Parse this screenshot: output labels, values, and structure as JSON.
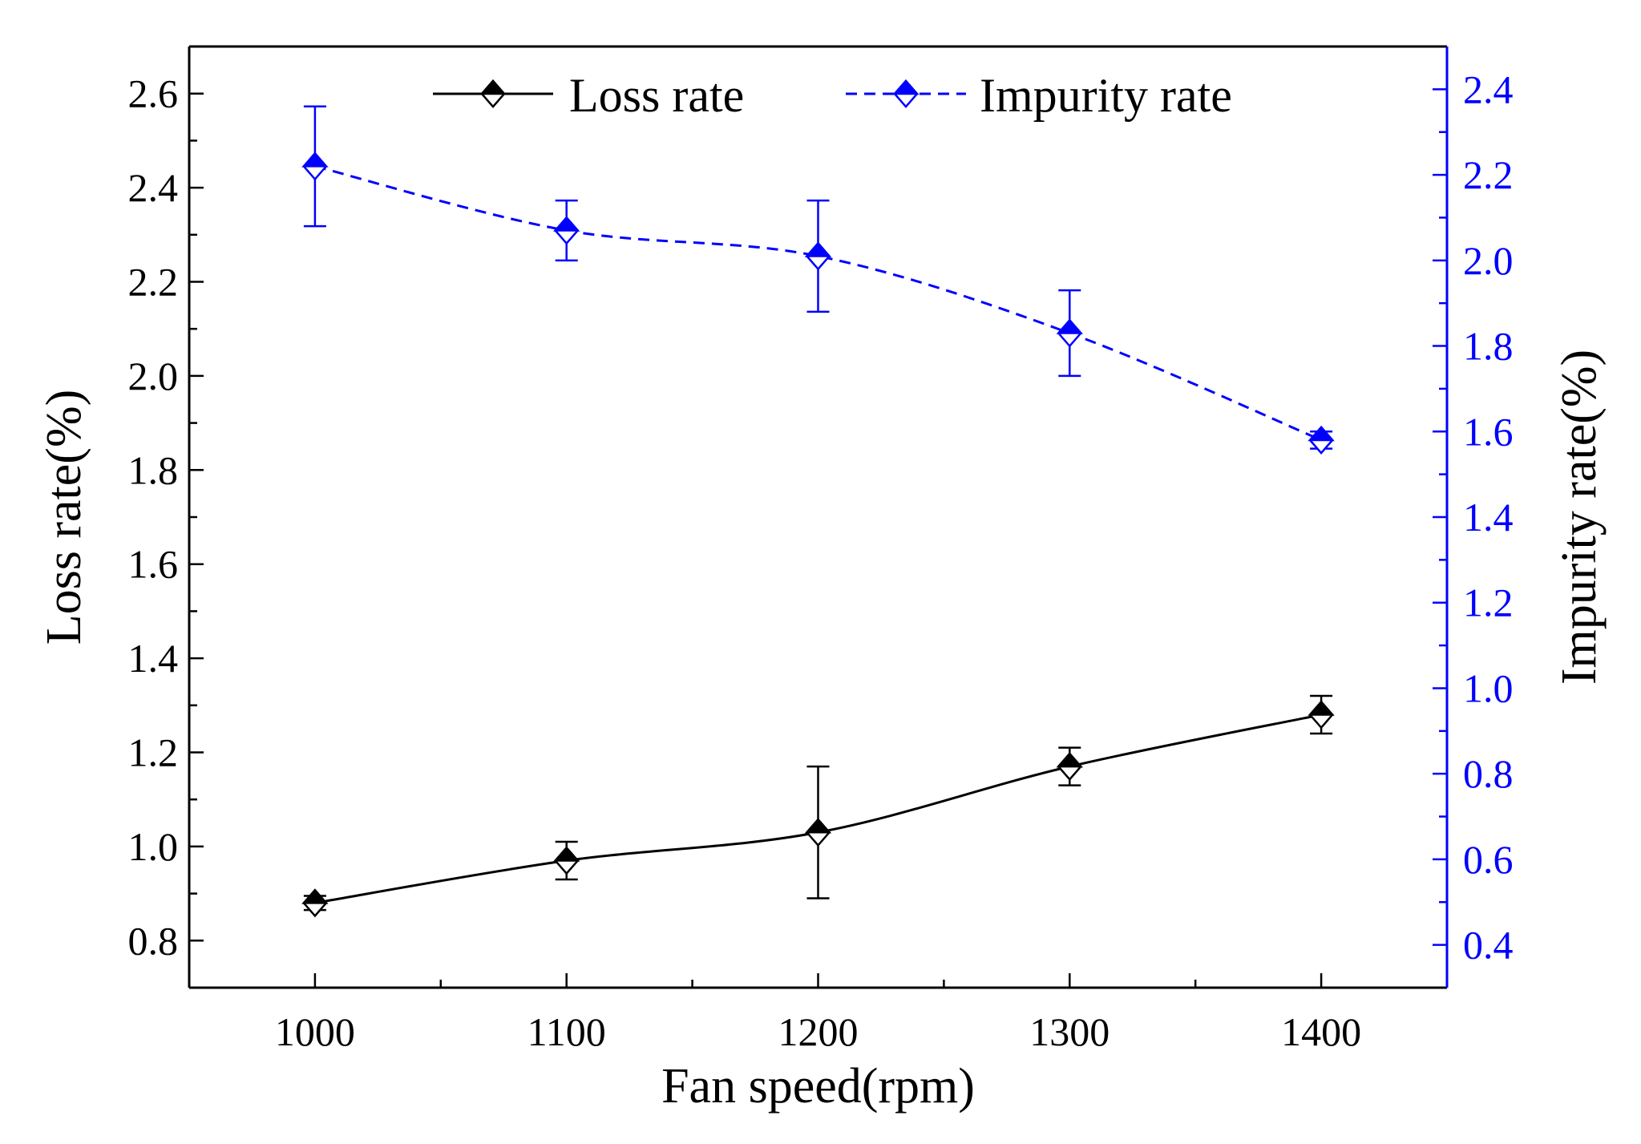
{
  "chart_data": {
    "type": "line",
    "title": "",
    "xlabel": "Fan speed(rpm)",
    "ylabel": "Loss rate(%)",
    "y2label": "Impurity rate(%)",
    "x": [
      1000,
      1100,
      1200,
      1300,
      1400
    ],
    "xlim": [
      950,
      1450
    ],
    "ylim": [
      0.7,
      2.7
    ],
    "y2lim": [
      0.3,
      2.5
    ],
    "xticks": [
      1000,
      1100,
      1200,
      1300,
      1400
    ],
    "xtick_labels": [
      "1000",
      "1100",
      "1200",
      "1300",
      "1400"
    ],
    "yticks": [
      0.8,
      1.0,
      1.2,
      1.4,
      1.6,
      1.8,
      2.0,
      2.2,
      2.4,
      2.6
    ],
    "ytick_labels": [
      "0.8",
      "1.0",
      "1.2",
      "1.4",
      "1.6",
      "1.8",
      "2.0",
      "2.2",
      "2.4",
      "2.6"
    ],
    "y2ticks": [
      0.4,
      0.6,
      0.8,
      1.0,
      1.2,
      1.4,
      1.6,
      1.8,
      2.0,
      2.2,
      2.4
    ],
    "y2tick_labels": [
      "0.4",
      "0.6",
      "0.8",
      "1.0",
      "1.2",
      "1.4",
      "1.6",
      "1.8",
      "2.0",
      "2.2",
      "2.4"
    ],
    "grid": false,
    "legend_position": "top-center",
    "series": [
      {
        "name": "Loss rate",
        "axis": "left",
        "color": "#000000",
        "line_style": "solid",
        "marker": "diamond",
        "values": [
          0.88,
          0.97,
          1.03,
          1.17,
          1.28
        ],
        "error": [
          0.015,
          0.04,
          0.14,
          0.04,
          0.04
        ]
      },
      {
        "name": "Impurity rate",
        "axis": "right",
        "color": "#0000ff",
        "line_style": "dashed",
        "marker": "diamond",
        "values": [
          2.22,
          2.07,
          2.01,
          1.83,
          1.58
        ],
        "error": [
          0.14,
          0.07,
          0.13,
          0.1,
          0.02
        ]
      }
    ]
  }
}
